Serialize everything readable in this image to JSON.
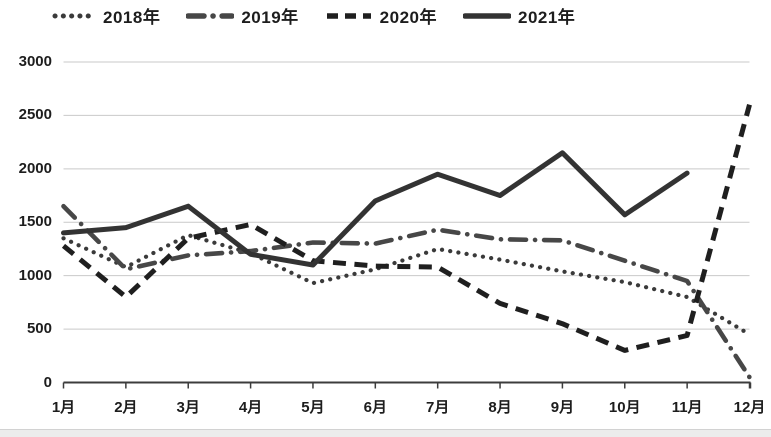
{
  "chart_data": {
    "type": "line",
    "title": "",
    "xlabel": "",
    "ylabel": "",
    "categories": [
      "1月",
      "2月",
      "3月",
      "4月",
      "5月",
      "6月",
      "7月",
      "8月",
      "9月",
      "10月",
      "11月",
      "12月"
    ],
    "series": [
      {
        "name": "2018年",
        "style": "dotted",
        "color": "#3a3a3a",
        "values": [
          1350,
          1080,
          1380,
          1210,
          930,
          1060,
          1250,
          1150,
          1040,
          940,
          800,
          450
        ]
      },
      {
        "name": "2019年",
        "style": "dashdot",
        "color": "#474747",
        "values": [
          1650,
          1060,
          1190,
          1230,
          1310,
          1300,
          1430,
          1340,
          1330,
          1140,
          950,
          50
        ]
      },
      {
        "name": "2020年",
        "style": "dashed",
        "color": "#1f1f1f",
        "values": [
          1280,
          800,
          1350,
          1480,
          1140,
          1090,
          1080,
          740,
          550,
          300,
          440,
          2600
        ]
      },
      {
        "name": "2021年",
        "style": "solid",
        "color": "#333333",
        "values": [
          1400,
          1450,
          1650,
          1200,
          1100,
          1700,
          1950,
          1750,
          2150,
          1570,
          1960,
          null
        ]
      }
    ],
    "ylim": [
      0,
      3000
    ],
    "y_tick_step": 500,
    "y_ticks_top_to_bottom": [
      "3000",
      "2500",
      "2000",
      "1500",
      "1000",
      "500",
      "0"
    ],
    "grid": "horizontal",
    "legend_position": "top"
  }
}
